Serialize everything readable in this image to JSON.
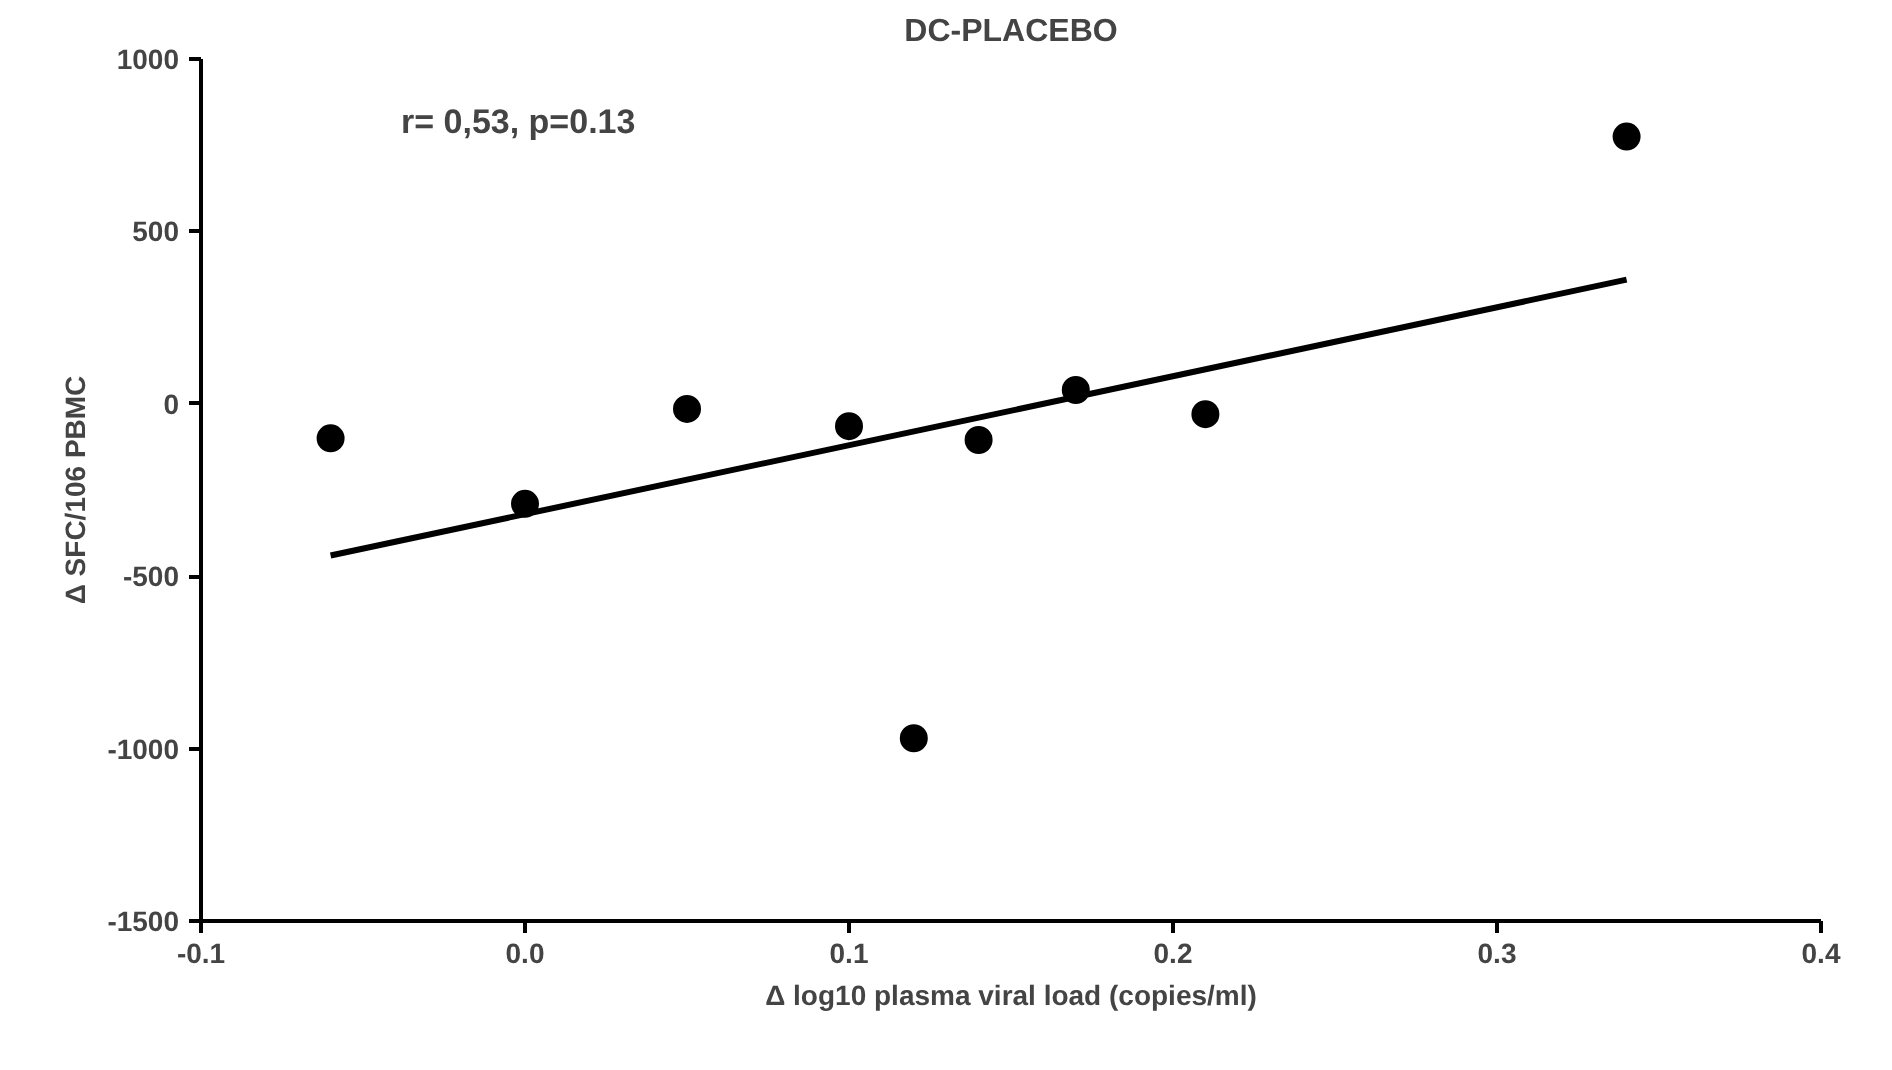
{
  "chart_data": {
    "type": "scatter",
    "title": "DC-PLACEBO",
    "xlabel": "Δ log10 plasma viral load (copies/ml)",
    "ylabel": "Δ SFC/106 PBMC",
    "annotations": [
      "r= 0,53, p=0.13"
    ],
    "series": [
      {
        "color": "#000000",
        "marker": "circle",
        "x": [
          -0.06,
          0.0,
          0.05,
          0.1,
          0.12,
          0.14,
          0.17,
          0.21,
          0.34
        ],
        "values": [
          -100,
          -290,
          -15,
          -65,
          -970,
          -105,
          40,
          -30,
          775
        ]
      },
      {
        "type": "line",
        "color": "#000000",
        "line_style": "solid",
        "x": [
          -0.06,
          0.34
        ],
        "values": [
          -440,
          360
        ]
      }
    ],
    "xlim": [
      -0.1,
      0.4
    ],
    "xticks": [
      {
        "value": -0.1,
        "label": "-0.1"
      },
      {
        "value": 0.0,
        "label": "0.0"
      },
      {
        "value": 0.1,
        "label": "0.1"
      },
      {
        "value": 0.2,
        "label": "0.2"
      },
      {
        "value": 0.3,
        "label": "0.3"
      },
      {
        "value": 0.4,
        "label": "0.4"
      }
    ],
    "ylim": [
      -1500,
      1000
    ],
    "yticks": [
      -1500,
      -1000,
      -500,
      0,
      500,
      1000
    ],
    "grid": false
  }
}
